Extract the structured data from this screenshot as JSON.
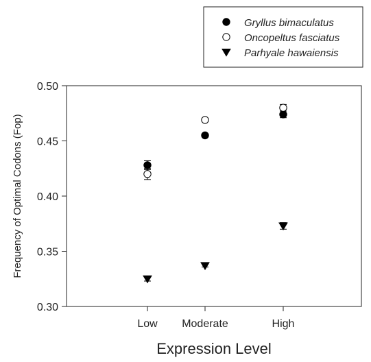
{
  "chart_data": {
    "type": "scatter",
    "title": "",
    "xlabel": "Expression Level",
    "ylabel": "Frequency of Optimal Codons (Fop)",
    "categories": [
      "Low",
      "Moderate",
      "High"
    ],
    "ylim": [
      0.3,
      0.5
    ],
    "yticks": [
      "0.30",
      "0.35",
      "0.40",
      "0.45",
      "0.50"
    ],
    "grid": false,
    "legend": "top-right",
    "series": [
      {
        "name": "Gryllus bimaculatus",
        "marker": "filled-circle",
        "values": [
          0.428,
          0.455,
          0.474
        ],
        "errors": [
          0.004,
          0.0015,
          0.003
        ]
      },
      {
        "name": "Oncopeltus fasciatus",
        "marker": "open-circle",
        "values": [
          0.42,
          0.469,
          0.48
        ],
        "errors": [
          0.005,
          0.0015,
          0.003
        ]
      },
      {
        "name": "Parhyale hawaiensis",
        "marker": "filled-triangle-down",
        "values": [
          0.325,
          0.337,
          0.373
        ],
        "errors": [
          0.002,
          0.0012,
          0.003
        ]
      }
    ]
  }
}
